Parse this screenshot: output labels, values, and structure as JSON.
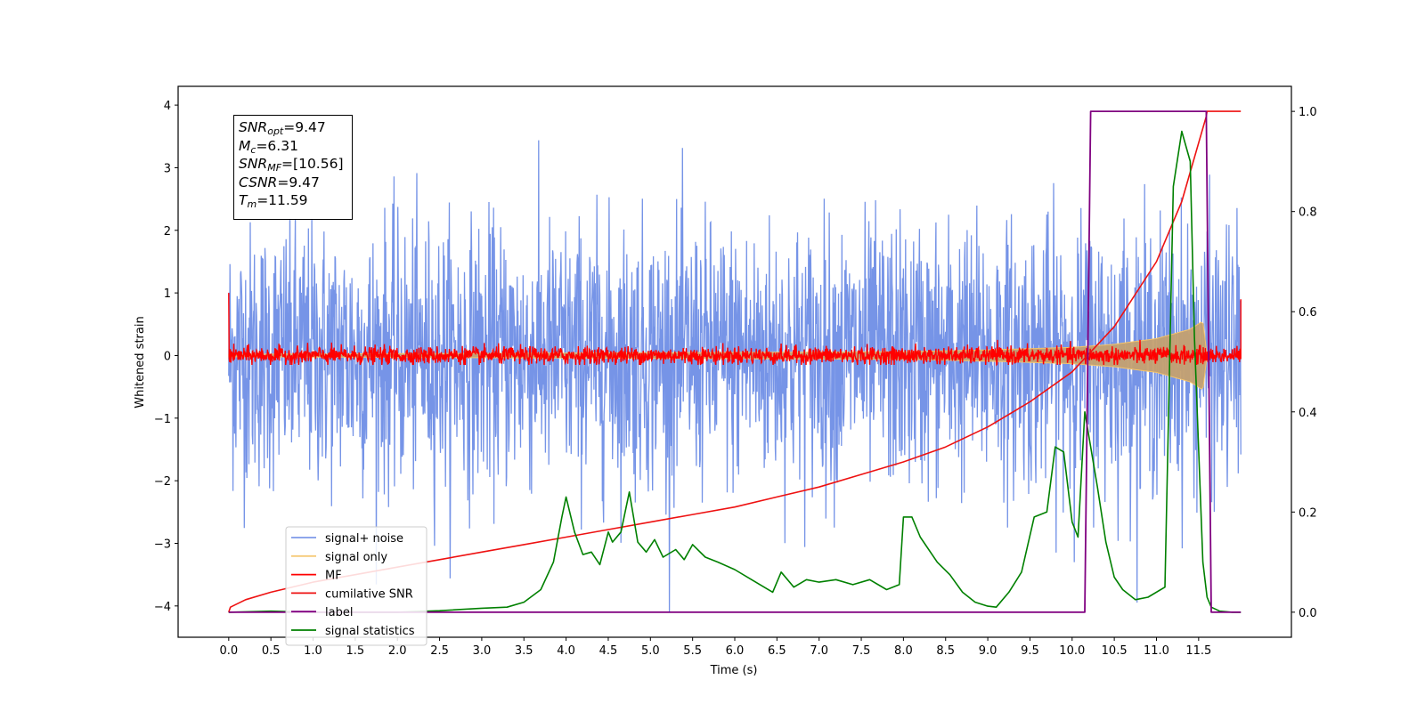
{
  "chart_data": {
    "type": "line",
    "title": "",
    "xlabel": "Time (s)",
    "ylabel": "Whitened strain",
    "xlim": [
      -0.6,
      12.6
    ],
    "ylim": [
      -4.5,
      4.3
    ],
    "y2lim": [
      -0.05,
      1.05
    ],
    "x_ticks": [
      0.0,
      0.5,
      1.0,
      1.5,
      2.0,
      2.5,
      3.0,
      3.5,
      4.0,
      4.5,
      5.0,
      5.5,
      6.0,
      6.5,
      7.0,
      7.5,
      8.0,
      8.5,
      9.0,
      9.5,
      10.0,
      10.5,
      11.0,
      11.5
    ],
    "x_tick_labels": [
      "0.0",
      "0.5",
      "1.0",
      "1.5",
      "2.0",
      "2.5",
      "3.0",
      "3.5",
      "4.0",
      "4.5",
      "5.0",
      "5.5",
      "6.0",
      "6.5",
      "7.0",
      "7.5",
      "8.0",
      "8.5",
      "9.0",
      "9.5",
      "10.0",
      "10.5",
      "11.0",
      "11.5"
    ],
    "y_ticks": [
      4,
      3,
      2,
      1,
      0,
      -1,
      -2,
      -3,
      -4
    ],
    "y_tick_labels": [
      "4",
      "3",
      "2",
      "1",
      "0",
      "−1",
      "−2",
      "−3",
      "−4"
    ],
    "y2_ticks": [
      1.0,
      0.8,
      0.6,
      0.4,
      0.2,
      0.0
    ],
    "y2_tick_labels": [
      "1.0",
      "0.8",
      "0.6",
      "0.4",
      "0.2",
      "0.0"
    ],
    "grid": false,
    "legend_position": "lower-left",
    "colors": {
      "signal_noise": "#6f8ee6",
      "signal_only": "#f5c46a",
      "mf": "#ff0000",
      "cumulative_snr": "#ee1111",
      "label": "#800080",
      "signal_statistics": "#008000"
    },
    "series": [
      {
        "name": "signal+ noise",
        "axis": "left",
        "description_values": "noise band; typical envelope ±1.6, peaks up to ±3.9, x from 0.0 to 12.0"
      },
      {
        "name": "signal only",
        "axis": "left",
        "chirp_envelope": {
          "x": [
            0.0,
            8.0,
            9.0,
            10.0,
            10.5,
            11.0,
            11.4,
            11.55,
            11.6
          ],
          "amp": [
            0.02,
            0.06,
            0.09,
            0.13,
            0.18,
            0.27,
            0.42,
            0.55,
            0.0
          ]
        }
      },
      {
        "name": "MF",
        "axis": "left",
        "baseline": 0.0,
        "noise_amp": 0.12,
        "endpoints": {
          "start": 1.0,
          "end": 0.9
        }
      },
      {
        "name": "cumilative SNR",
        "axis": "right",
        "x": [
          0.0,
          0.02,
          0.2,
          0.5,
          1.0,
          1.5,
          2.0,
          2.5,
          3.0,
          3.5,
          4.0,
          4.5,
          5.0,
          5.5,
          6.0,
          6.5,
          7.0,
          7.5,
          8.0,
          8.5,
          9.0,
          9.5,
          10.0,
          10.5,
          11.0,
          11.3,
          11.59,
          11.6,
          12.0
        ],
        "y": [
          0.0,
          0.01,
          0.025,
          0.04,
          0.06,
          0.075,
          0.09,
          0.105,
          0.12,
          0.135,
          0.15,
          0.165,
          0.18,
          0.195,
          0.21,
          0.23,
          0.25,
          0.275,
          0.3,
          0.33,
          0.37,
          0.42,
          0.48,
          0.57,
          0.7,
          0.82,
          0.99,
          1.0,
          1.0
        ]
      },
      {
        "name": "label",
        "axis": "right",
        "x": [
          0.0,
          10.15,
          10.22,
          11.59,
          11.65,
          12.0
        ],
        "y": [
          0.0,
          0.0,
          1.0,
          1.0,
          0.0,
          0.0
        ]
      },
      {
        "name": "signal statistics",
        "axis": "right",
        "x": [
          0.0,
          0.5,
          1.0,
          1.5,
          2.0,
          2.5,
          3.0,
          3.3,
          3.5,
          3.7,
          3.85,
          3.95,
          4.0,
          4.1,
          4.2,
          4.3,
          4.4,
          4.5,
          4.55,
          4.65,
          4.75,
          4.85,
          4.95,
          5.05,
          5.15,
          5.3,
          5.4,
          5.5,
          5.65,
          5.8,
          6.0,
          6.2,
          6.45,
          6.55,
          6.7,
          6.85,
          7.0,
          7.2,
          7.4,
          7.6,
          7.8,
          7.95,
          8.0,
          8.1,
          8.2,
          8.4,
          8.55,
          8.7,
          8.85,
          9.0,
          9.1,
          9.25,
          9.4,
          9.55,
          9.7,
          9.8,
          9.9,
          10.0,
          10.07,
          10.15,
          10.3,
          10.4,
          10.5,
          10.6,
          10.75,
          10.9,
          11.1,
          11.2,
          11.3,
          11.4,
          11.45,
          11.55,
          11.6,
          11.65,
          11.75,
          11.9,
          12.0
        ],
        "y": [
          0.0,
          0.002,
          0.0,
          0.0,
          0.0,
          0.003,
          0.008,
          0.01,
          0.02,
          0.045,
          0.1,
          0.19,
          0.23,
          0.16,
          0.115,
          0.12,
          0.095,
          0.16,
          0.14,
          0.16,
          0.24,
          0.14,
          0.12,
          0.145,
          0.11,
          0.125,
          0.105,
          0.135,
          0.11,
          0.1,
          0.085,
          0.065,
          0.04,
          0.08,
          0.05,
          0.065,
          0.06,
          0.065,
          0.055,
          0.065,
          0.045,
          0.055,
          0.19,
          0.19,
          0.15,
          0.1,
          0.075,
          0.04,
          0.02,
          0.012,
          0.01,
          0.04,
          0.08,
          0.19,
          0.2,
          0.33,
          0.32,
          0.18,
          0.15,
          0.4,
          0.25,
          0.14,
          0.07,
          0.045,
          0.025,
          0.03,
          0.05,
          0.85,
          0.96,
          0.9,
          0.55,
          0.1,
          0.03,
          0.01,
          0.002,
          0.0,
          0.0
        ]
      }
    ]
  },
  "legend": [
    {
      "label": "signal+ noise",
      "color": "#6f8ee6",
      "opacity": 0.9
    },
    {
      "label": "signal only",
      "color": "#f5c46a",
      "opacity": 0.9
    },
    {
      "label": "MF",
      "color": "#ff0000",
      "opacity": 1
    },
    {
      "label": "cumilative SNR",
      "color": "#ee1111",
      "opacity": 1
    },
    {
      "label": "label",
      "color": "#800080",
      "opacity": 1
    },
    {
      "label": "signal statistics",
      "color": "#008000",
      "opacity": 1
    }
  ],
  "stats_box": {
    "snr_opt_label": "SNR",
    "snr_opt_sub": "opt",
    "snr_opt_value": "=9.47",
    "mc_label": "M",
    "mc_sub": "c",
    "mc_value": "=6.31",
    "snr_mf_label": "SNR",
    "snr_mf_sub": "MF",
    "snr_mf_value": "=[10.56]",
    "csnr_label": "CSNR",
    "csnr_value": "=9.47",
    "tm_label": "T",
    "tm_sub": "m",
    "tm_value": "=11.59"
  }
}
